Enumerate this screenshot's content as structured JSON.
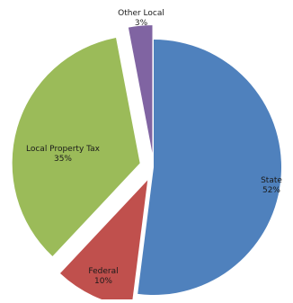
{
  "chart_data": {
    "type": "pie",
    "title": "",
    "exploded": true,
    "legend": "none",
    "slices": [
      {
        "label": "State",
        "value": 52,
        "percent_label": "52%",
        "color": "#4F81BD"
      },
      {
        "label": "Federal",
        "value": 10,
        "percent_label": "10%",
        "color": "#C0504D"
      },
      {
        "label": "Local Property Tax",
        "value": 35,
        "percent_label": "35%",
        "color": "#9BBB59"
      },
      {
        "label": "Other Local",
        "value": 3,
        "percent_label": "3%",
        "color": "#8064A2"
      }
    ]
  }
}
